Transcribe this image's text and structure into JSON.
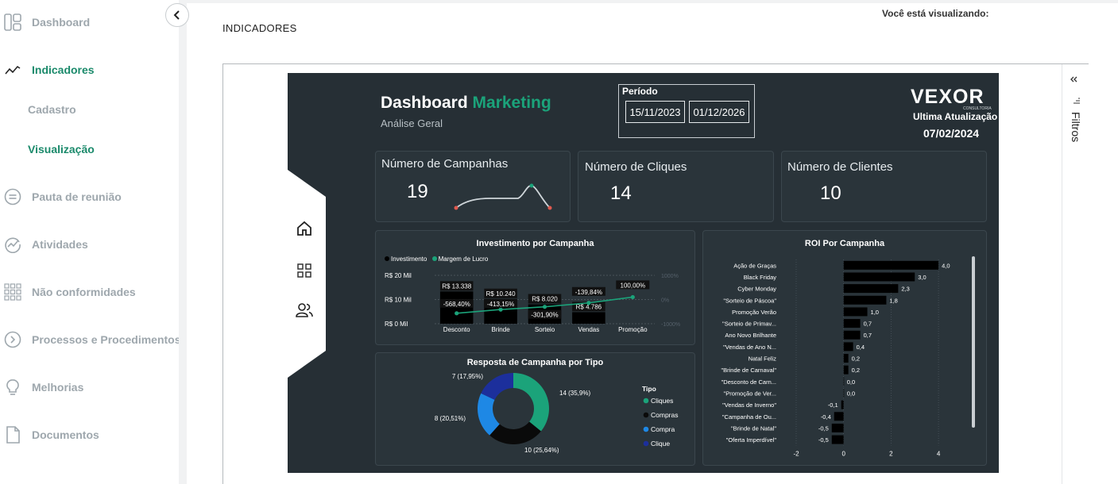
{
  "sidebar": {
    "items": [
      {
        "label": "Dashboard",
        "icon": "dashboard-icon"
      },
      {
        "label": "Indicadores",
        "icon": "trend-icon"
      },
      {
        "label": "Pauta de reunião",
        "icon": "list-icon"
      },
      {
        "label": "Atividades",
        "icon": "activity-icon"
      },
      {
        "label": "Não conformidades",
        "icon": "grid-icon"
      },
      {
        "label": "Processos e Procedimentos",
        "icon": "chevron-circle-icon"
      },
      {
        "label": "Melhorias",
        "icon": "bulb-icon"
      },
      {
        "label": "Documentos",
        "icon": "document-icon"
      }
    ],
    "subitems": [
      {
        "label": "Cadastro"
      },
      {
        "label": "Visualização"
      }
    ],
    "collapse": "chevron-left-icon"
  },
  "header": {
    "viewing": "Você está visualizando:",
    "page_title": "INDICADORES"
  },
  "filters": {
    "label": "Filtros"
  },
  "report": {
    "title_a": "Dashboard",
    "title_b": "Marketing",
    "subtitle": "Análise Geral",
    "period_label": "Período",
    "date_from": "15/11/2023",
    "date_to": "01/12/2026",
    "brand": "VEXOR",
    "brand_sub": "CONSULTORIA",
    "updated_label": "Ultima Atualização",
    "updated_value": "07/02/2024",
    "kpis": [
      {
        "label": "Número de Campanhas",
        "value": "19"
      },
      {
        "label": "Número de Cliques",
        "value": "14"
      },
      {
        "label": "Número de Clientes",
        "value": "10"
      }
    ],
    "colors": {
      "accent": "#1ba37a",
      "bg": "#262f35",
      "card": "#2a343a"
    }
  },
  "chart_data": [
    {
      "type": "bar",
      "title": "Investimento por Campanha",
      "categories": [
        "Desconto",
        "Brinde",
        "Sorteio",
        "Vendas",
        "Promoção"
      ],
      "series": [
        {
          "name": "Investimento",
          "values": [
            13338,
            10240,
            8020,
            4786,
            0
          ],
          "labels": [
            "R$ 13.338",
            "R$ 10.240",
            "R$ 8.020",
            "R$ 4.786",
            ""
          ]
        },
        {
          "name": "Margem de Lucro",
          "values": [
            -568.4,
            -413.15,
            -301.9,
            -139.84,
            100.0
          ],
          "labels": [
            "-568,40%",
            "-413,15%",
            "-301,90%",
            "-139,84%",
            "100,00%"
          ]
        }
      ],
      "y_ticks": [
        "R$ 20 Mil",
        "R$ 10 Mil",
        "R$ 0 Mil"
      ],
      "y2_ticks": [
        "1000%",
        "0%",
        "-1000%"
      ],
      "ylim": [
        0,
        20000
      ],
      "y2lim": [
        -1000,
        1000
      ]
    },
    {
      "type": "bar",
      "title": "ROI Por Campanha",
      "orientation": "horizontal",
      "categories": [
        "Ação de Graças",
        "Black Friday",
        "Cyber Monday",
        "\"Sorteio de Páscoa\"",
        "Promoção Verão",
        "\"Sorteio de Primav...",
        "Ano Novo Brilhante",
        "\"Vendas de Ano N...",
        "Natal Feliz",
        "\"Brinde de Carnaval\"",
        "\"Desconto de Carn...",
        "\"Promoção de Ver...",
        "\"Vendas de Inverno\"",
        "\"Campanha de Ou...",
        "\"Brinde de Natal\"",
        "\"Oferta Imperdível\""
      ],
      "values": [
        4.0,
        3.0,
        2.3,
        1.8,
        1.0,
        0.7,
        0.7,
        0.4,
        0.2,
        0.2,
        0.0,
        0.0,
        -0.1,
        -0.4,
        -0.5,
        -0.5
      ],
      "labels": [
        "4,0",
        "3,0",
        "2,3",
        "1,8",
        "1,0",
        "0,7",
        "0,7",
        "0,4",
        "0,2",
        "0,2",
        "0,0",
        "0,0",
        "-0,1",
        "-0,4",
        "-0,5",
        "-0,5"
      ],
      "x_ticks": [
        "-2",
        "0",
        "2",
        "4"
      ],
      "xlim": [
        -2,
        4.5
      ]
    },
    {
      "type": "pie",
      "title": "Resposta de Campanha por Tipo",
      "legend_title": "Tipo",
      "slices": [
        {
          "name": "Cliques",
          "value": 14,
          "label": "14 (35,9%)",
          "color": "#1ba37a"
        },
        {
          "name": "Compras",
          "value": 10,
          "label": "10 (25,64%)",
          "color": "#0a0a0a"
        },
        {
          "name": "Compra",
          "value": 8,
          "label": "8 (20,51%)",
          "color": "#1e88e5"
        },
        {
          "name": "Clique",
          "value": 7,
          "label": "7 (17,95%)",
          "color": "#1c2f9c"
        }
      ]
    }
  ]
}
